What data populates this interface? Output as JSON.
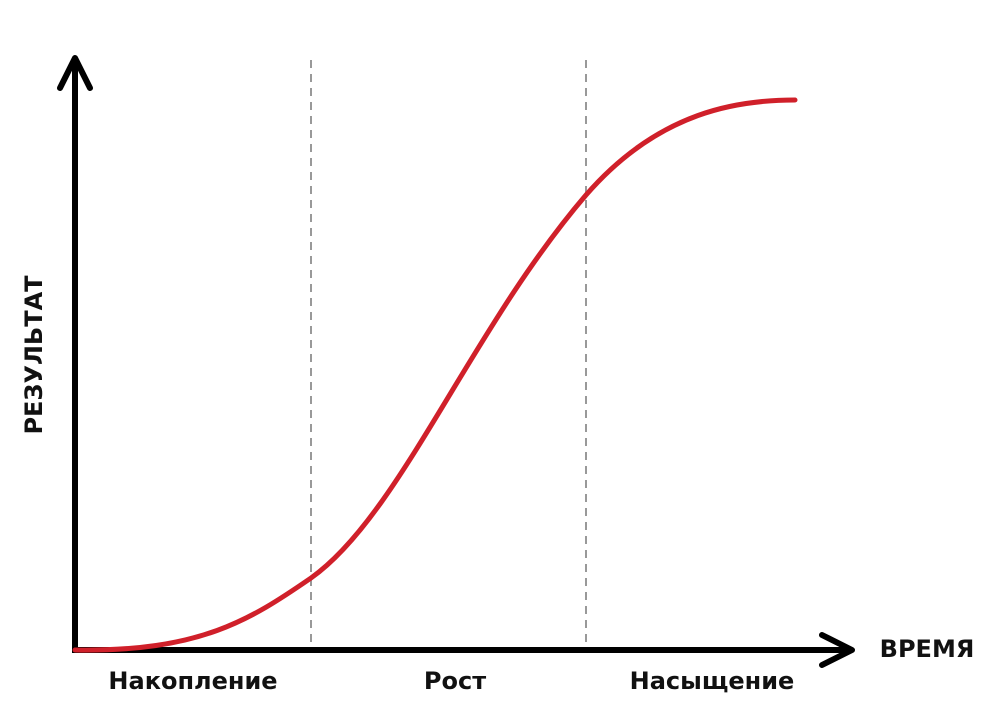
{
  "axes": {
    "y_label": "РЕЗУЛЬТАТ",
    "x_label": "ВРЕМЯ"
  },
  "phases": [
    "Накопление",
    "Рост",
    "Насыщение"
  ]
}
